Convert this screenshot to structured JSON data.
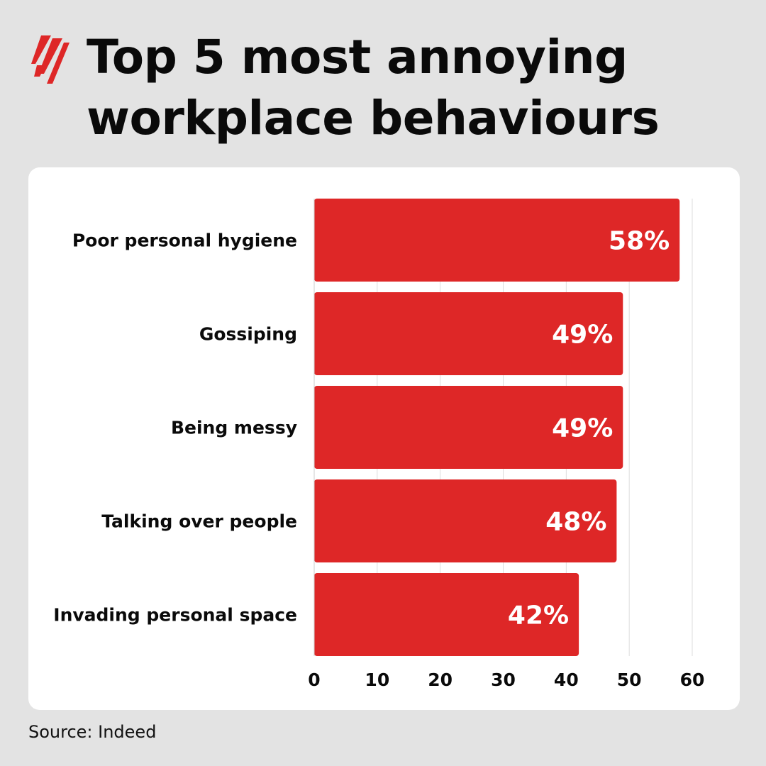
{
  "title_lines": [
    "Top 5 most annoying",
    "workplace behaviours"
  ],
  "source": "Source: Indeed",
  "colors": {
    "bar": "#de2727",
    "background": "#e3e3e3",
    "panel": "#ffffff",
    "grid": "#dddddd",
    "logo": "#de2727"
  },
  "icons": {
    "logo": "sbs-logo-icon"
  },
  "chart_data": {
    "type": "bar",
    "orientation": "horizontal",
    "categories": [
      "Poor personal hygiene",
      "Gossiping",
      "Being messy",
      "Talking over people",
      "Invading personal space"
    ],
    "values": [
      58,
      49,
      49,
      48,
      42
    ],
    "value_labels": [
      "58%",
      "49%",
      "49%",
      "48%",
      "42%"
    ],
    "xlim": [
      0,
      60
    ],
    "xticks": [
      0,
      10,
      20,
      30,
      40,
      50,
      60
    ],
    "grid": true,
    "title": "Top 5 most annoying workplace behaviours",
    "xlabel": "",
    "ylabel": ""
  }
}
